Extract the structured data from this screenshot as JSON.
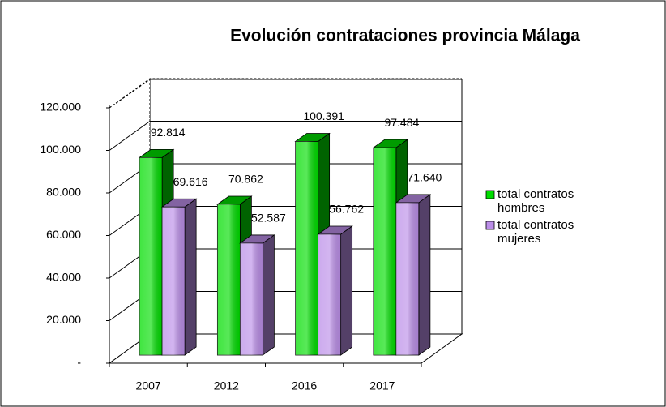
{
  "chart_data": {
    "type": "bar3d",
    "title": "Evolución contrataciones provincia Málaga",
    "categories": [
      "2007",
      "2012",
      "2016",
      "2017"
    ],
    "series": [
      {
        "name": "total contratos hombres",
        "color": "#00dd00",
        "values": [
          92814,
          70862,
          100391,
          97484
        ],
        "value_labels": [
          "92.814",
          "70.862",
          "100.391",
          "97.484"
        ]
      },
      {
        "name": "total contratos mujeres",
        "color": "#bb8ee8",
        "values": [
          69616,
          52587,
          56762,
          71640
        ],
        "value_labels": [
          "69.616",
          "52.587",
          "56.762",
          "71.640"
        ]
      }
    ],
    "ylim": [
      0,
      120000
    ],
    "yticks": [
      {
        "value": 0,
        "label": "-"
      },
      {
        "value": 20000,
        "label": "20.000"
      },
      {
        "value": 40000,
        "label": "40.000"
      },
      {
        "value": 60000,
        "label": "60.000"
      },
      {
        "value": 80000,
        "label": "80.000"
      },
      {
        "value": 100000,
        "label": "100.000"
      },
      {
        "value": 120000,
        "label": "120.000"
      }
    ],
    "grid": true,
    "legend": "right"
  }
}
